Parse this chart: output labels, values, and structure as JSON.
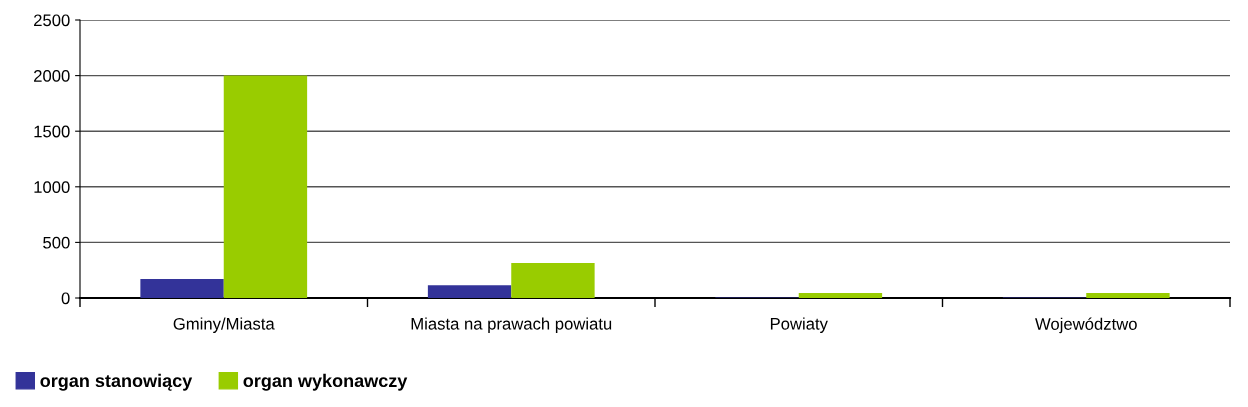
{
  "chart_data": {
    "type": "bar",
    "categories": [
      "Gminy/Miasta",
      "Miasta na prawach powiatu",
      "Powiaty",
      "Województwo"
    ],
    "series": [
      {
        "name": "organ stanowiący",
        "color": "#333399",
        "values": [
          170,
          115,
          5,
          5
        ]
      },
      {
        "name": "organ wykonawczy",
        "color": "#99cc00",
        "values": [
          2000,
          315,
          45,
          45
        ]
      }
    ],
    "ylim": [
      0,
      2500
    ],
    "yticks": [
      0,
      500,
      1000,
      1500,
      2000,
      2500
    ],
    "grid": "y",
    "legend": "bottom left"
  }
}
